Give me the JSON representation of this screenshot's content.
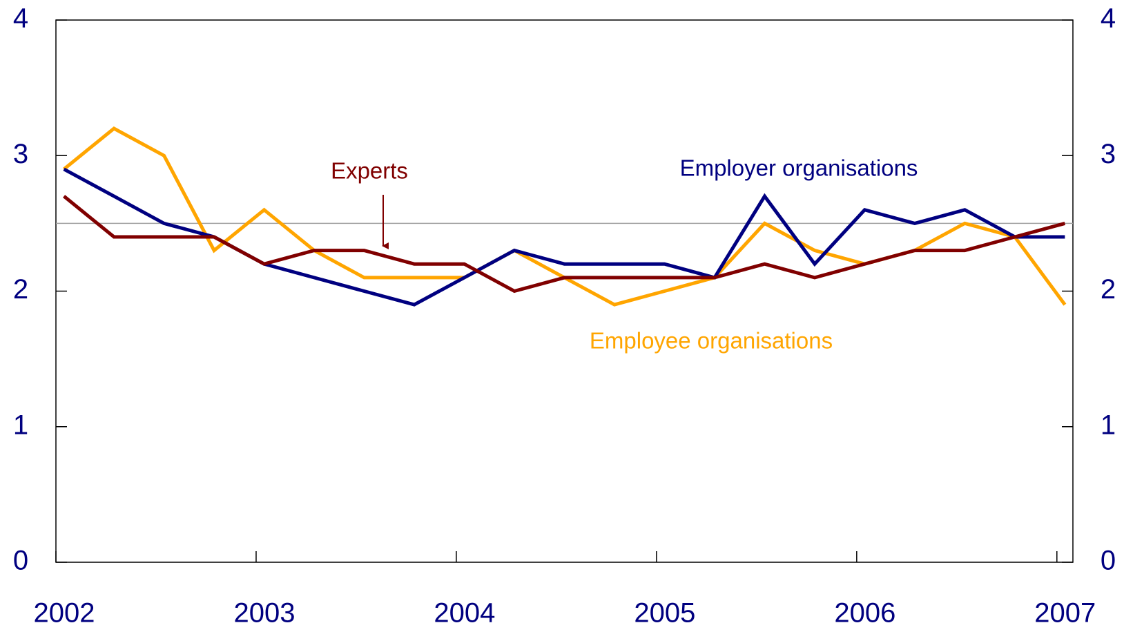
{
  "chart_data": {
    "type": "line",
    "x": [
      2002.04,
      2002.29,
      2002.54,
      2002.79,
      2003.04,
      2003.29,
      2003.54,
      2003.79,
      2004.04,
      2004.29,
      2004.54,
      2004.79,
      2005.04,
      2005.29,
      2005.54,
      2005.79,
      2006.04,
      2006.29,
      2006.54,
      2006.79,
      2007.04
    ],
    "series": [
      {
        "name": "Experts",
        "color": "#800000",
        "values": [
          2.7,
          2.4,
          2.4,
          2.4,
          2.2,
          2.3,
          2.3,
          2.2,
          2.2,
          2.0,
          2.1,
          2.1,
          2.1,
          2.1,
          2.2,
          2.1,
          2.2,
          2.3,
          2.3,
          2.4,
          2.5
        ]
      },
      {
        "name": "Employer organisations",
        "color": "#000080",
        "values": [
          2.9,
          2.7,
          2.5,
          2.4,
          2.2,
          2.1,
          2.0,
          1.9,
          2.1,
          2.3,
          2.2,
          2.2,
          2.2,
          2.1,
          2.7,
          2.2,
          2.6,
          2.5,
          2.6,
          2.4,
          2.4
        ]
      },
      {
        "name": "Employee organisations",
        "color": "#FFA500",
        "values": [
          2.9,
          3.2,
          3.0,
          2.3,
          2.6,
          2.3,
          2.1,
          2.1,
          2.1,
          2.3,
          2.1,
          1.9,
          2.0,
          2.1,
          2.5,
          2.3,
          2.2,
          2.3,
          2.5,
          2.4,
          1.9
        ]
      }
    ],
    "xlim": [
      2002,
      2007.08
    ],
    "xticks": [
      2002,
      2003,
      2004,
      2005,
      2006,
      2007
    ],
    "ylim": [
      0,
      4
    ],
    "yticks": [
      0,
      1,
      2,
      3,
      4
    ],
    "y2lim": [
      0,
      4
    ],
    "y2ticks": [
      0,
      1,
      2,
      3,
      4
    ],
    "reference_line": 2.5
  }
}
